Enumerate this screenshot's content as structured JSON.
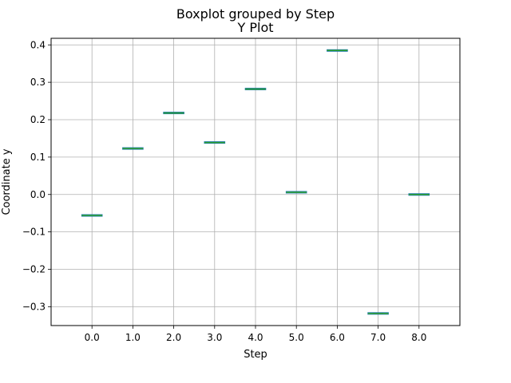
{
  "chart_data": {
    "type": "box",
    "suptitle": "Boxplot grouped by Step",
    "title": "Y Plot",
    "xlabel": "Step",
    "ylabel": "Coordinate y",
    "categories": [
      "0.0",
      "1.0",
      "2.0",
      "3.0",
      "4.0",
      "5.0",
      "6.0",
      "7.0",
      "8.0"
    ],
    "values": [
      -0.056,
      0.123,
      0.218,
      0.139,
      0.282,
      0.006,
      0.385,
      -0.318,
      0.0
    ],
    "y_ticks": [
      -0.3,
      -0.2,
      -0.1,
      0.0,
      0.1,
      0.2,
      0.3,
      0.4
    ],
    "y_tick_labels": [
      "−0.3",
      "−0.2",
      "−0.1",
      "0.0",
      "0.1",
      "0.2",
      "0.3",
      "0.4"
    ],
    "ylim": [
      -0.3504,
      0.4176
    ],
    "grid": true,
    "legend": false,
    "colors": {
      "box": "#1f77b4",
      "median": "#2ca02c",
      "grid": "#b0b0b0",
      "axes": "#000000"
    }
  }
}
